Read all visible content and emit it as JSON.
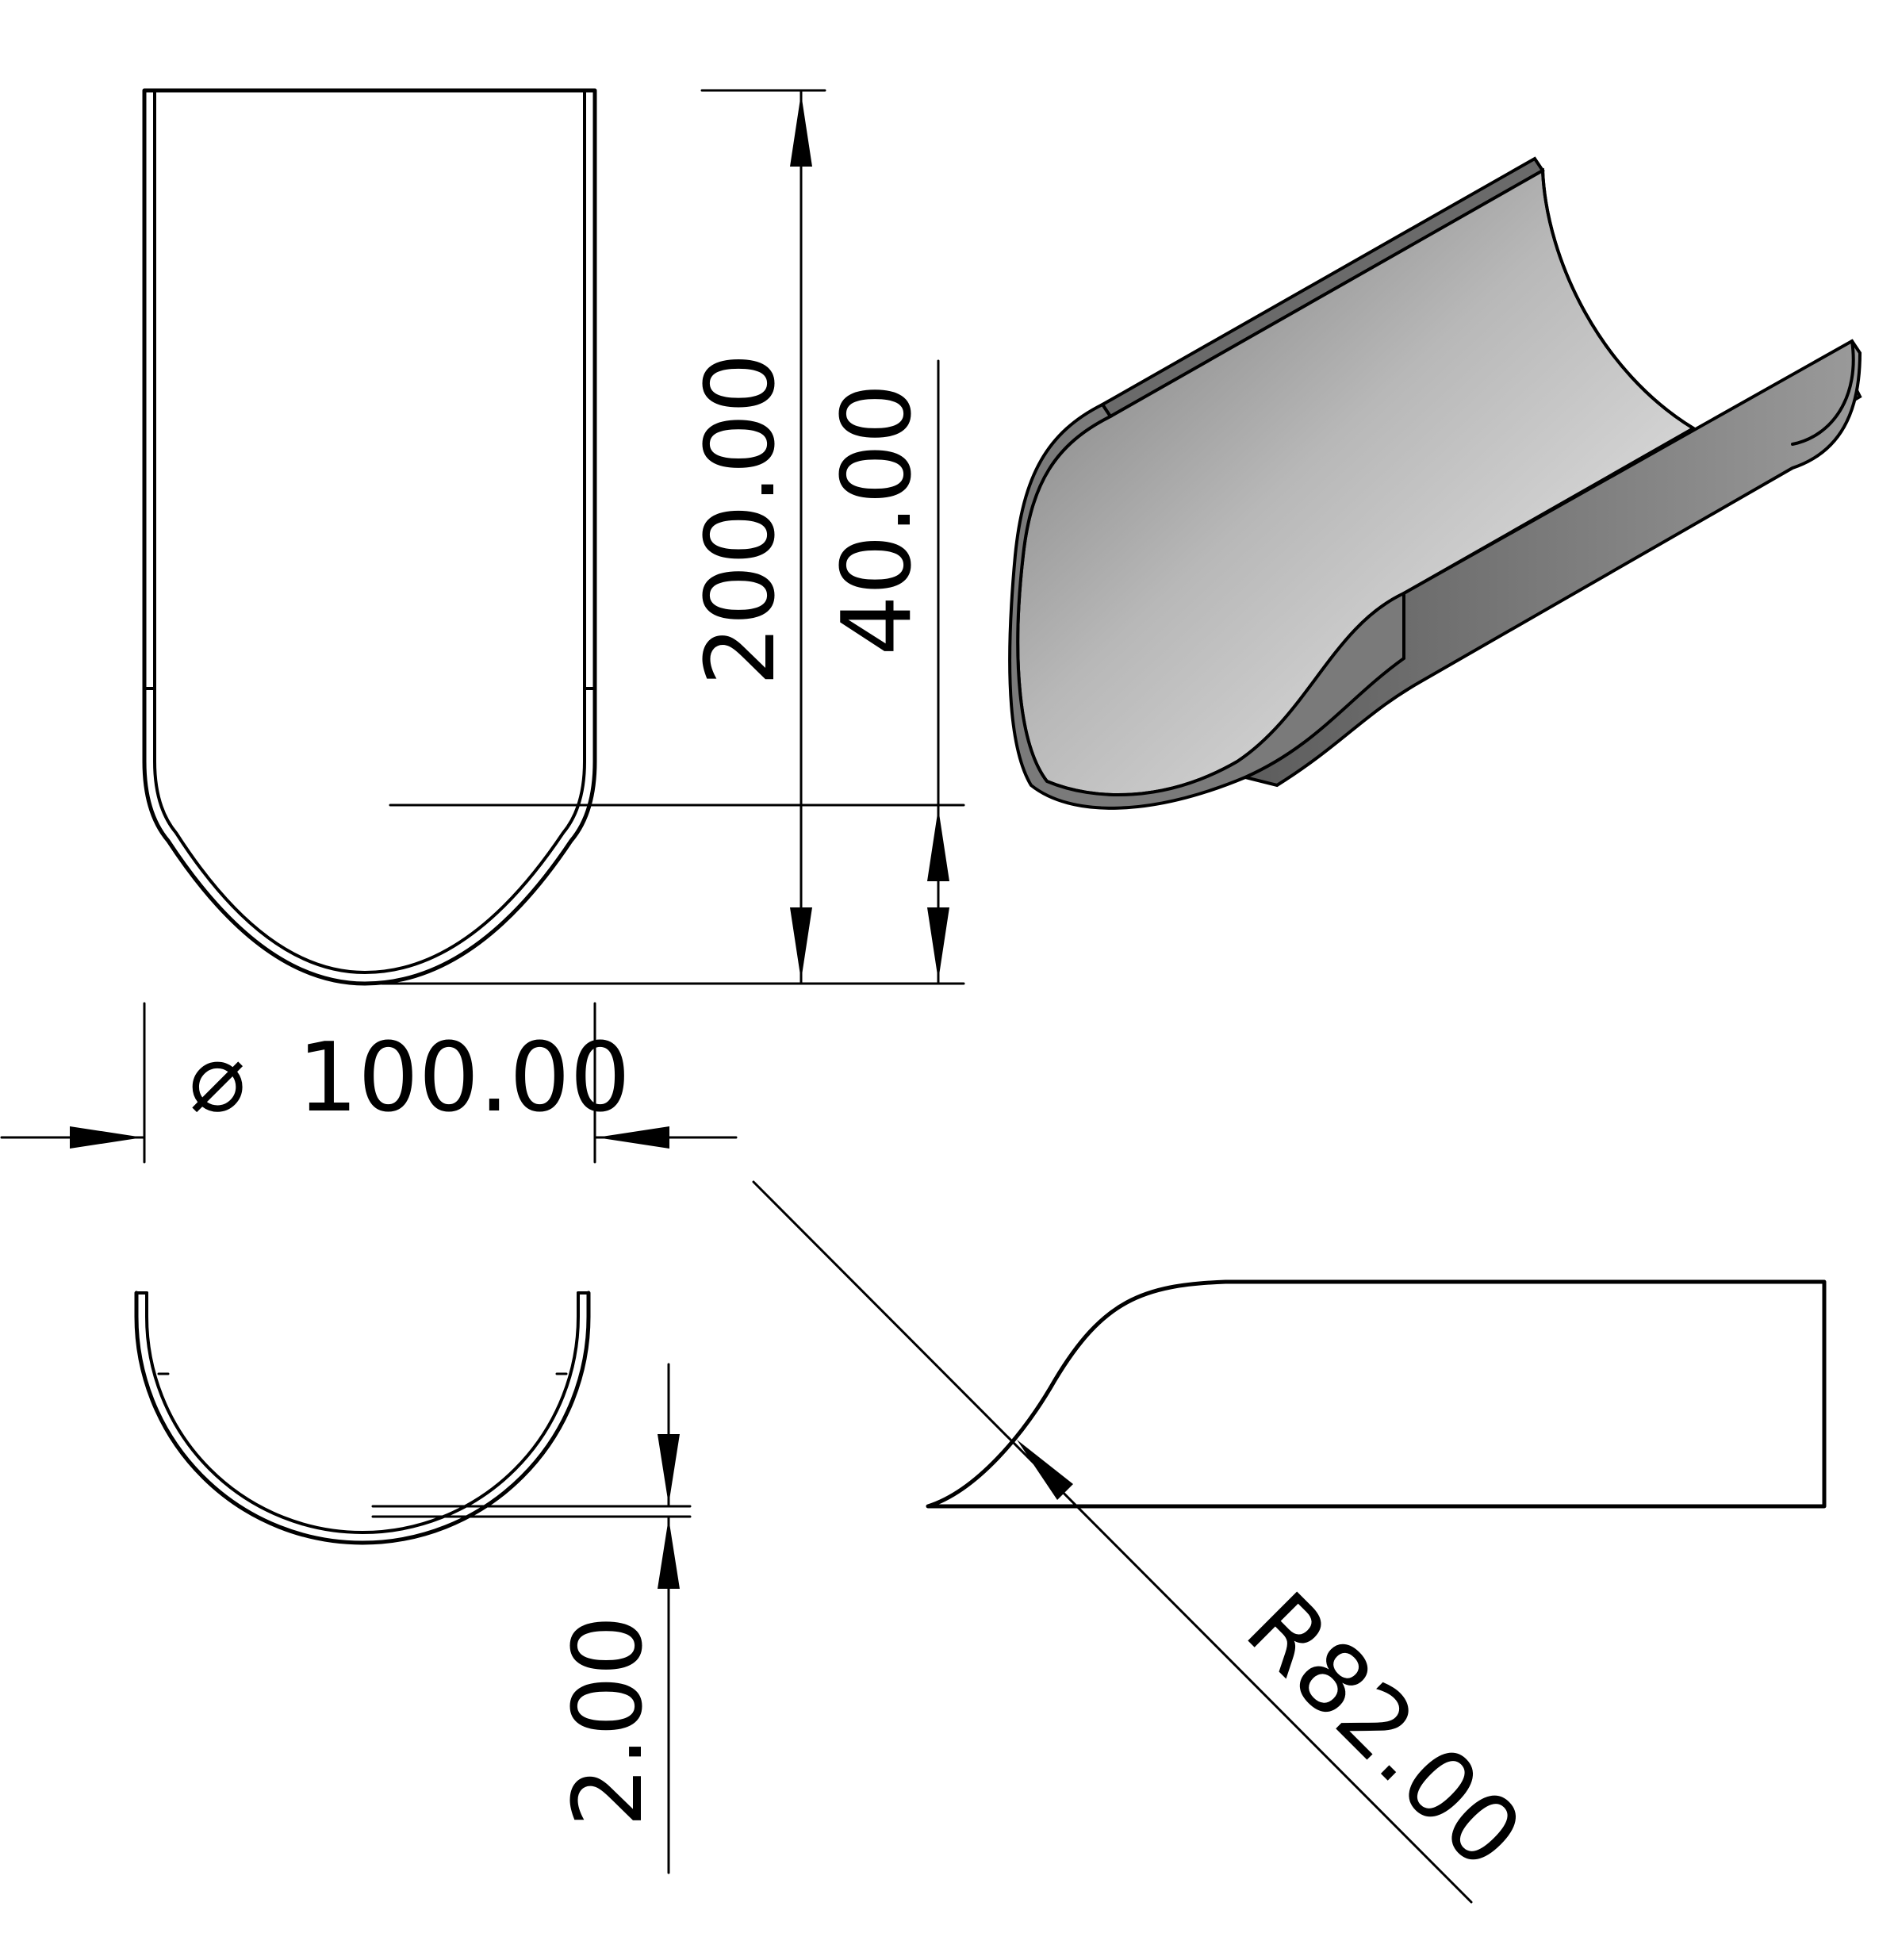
{
  "drawing": {
    "dimensions": {
      "overall_length": "200.00",
      "tip_length": "40.00",
      "diameter_value": "100.00",
      "diameter_symbol": "⌀",
      "thickness": "2.00",
      "radius": "R82.00"
    }
  }
}
